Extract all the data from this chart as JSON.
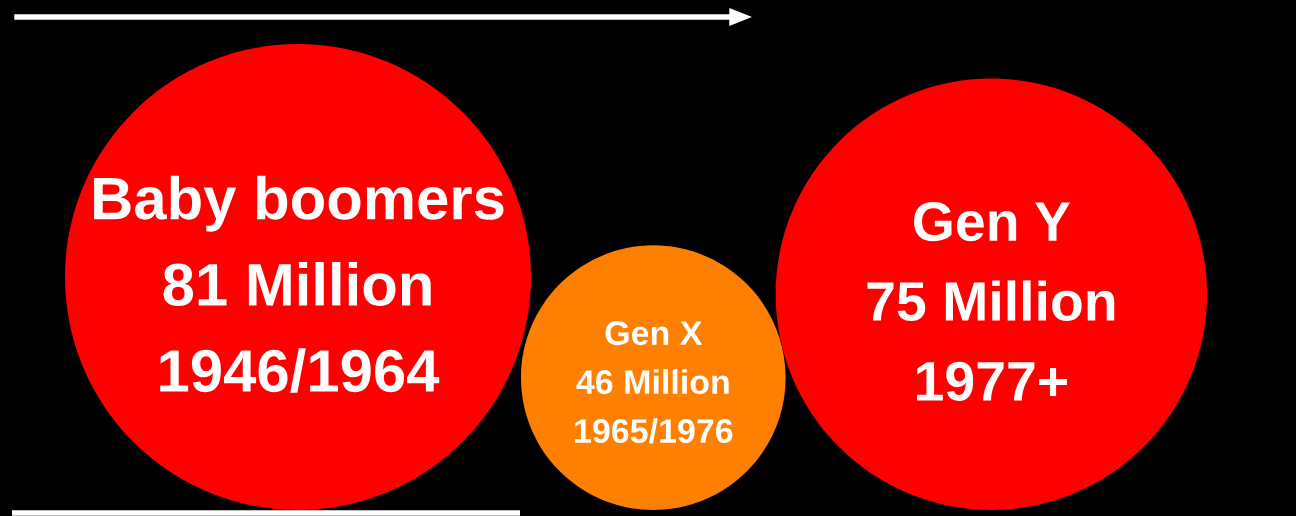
{
  "chart_data": {
    "type": "other",
    "categories": [
      "Baby boomers",
      "Gen X",
      "Gen Y"
    ],
    "values": [
      81,
      46,
      75
    ],
    "value_labels": [
      "81 Million",
      "46 Million",
      "75 Million"
    ],
    "annotations": [
      "1946/1964",
      "1965/1976",
      "1977+"
    ],
    "colors": [
      "#ff0000",
      "#ff8000",
      "#ff0000"
    ]
  }
}
